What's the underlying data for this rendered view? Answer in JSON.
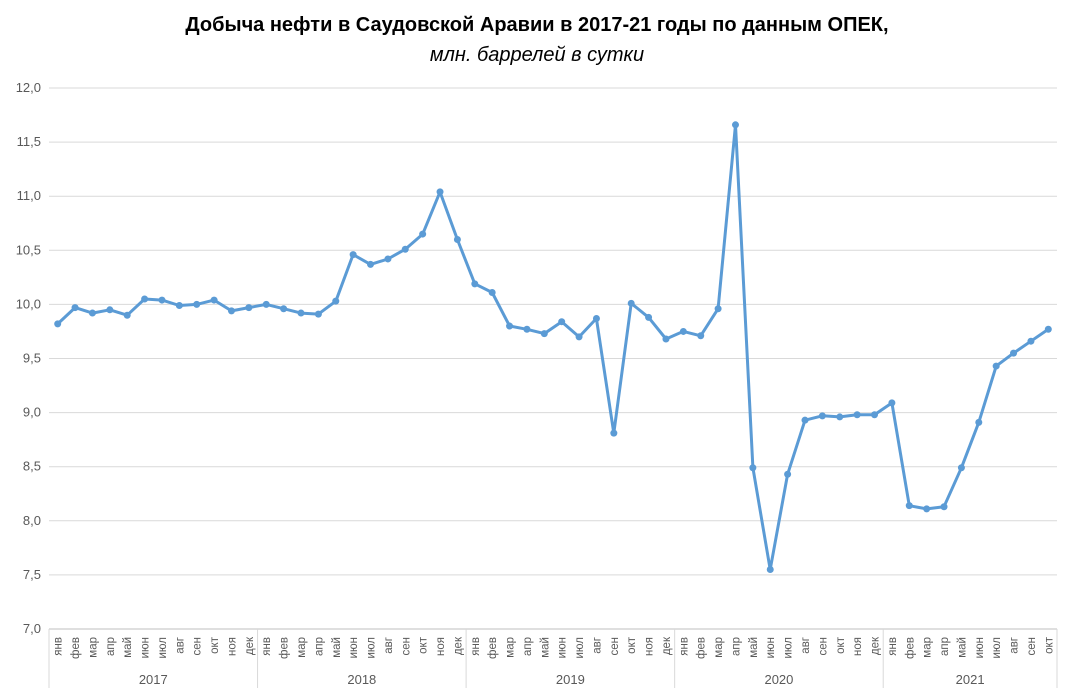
{
  "chart_data": {
    "type": "line",
    "title": "Добыча нефти в Саудовской Аравии в 2017-21 годы по данным ОПЕК,",
    "subtitle": "млн. баррелей в сутки",
    "xlabel": "",
    "ylabel": "",
    "ylim": [
      7.0,
      12.0
    ],
    "y_ticks": [
      "7,0",
      "7,5",
      "8,0",
      "8,5",
      "9,0",
      "9,5",
      "10,0",
      "10,5",
      "11,0",
      "11,5",
      "12,0"
    ],
    "grid": true,
    "legend": "none",
    "color": "#5B9BD5",
    "month_labels": [
      "янв",
      "фев",
      "мар",
      "апр",
      "май",
      "июн",
      "июл",
      "авг",
      "сен",
      "окт",
      "ноя",
      "дек"
    ],
    "years": [
      {
        "label": "2017",
        "months": 12
      },
      {
        "label": "2018",
        "months": 12
      },
      {
        "label": "2019",
        "months": 12
      },
      {
        "label": "2020",
        "months": 12
      },
      {
        "label": "2021",
        "months": 10
      }
    ],
    "series": [
      {
        "name": "Добыча нефти",
        "values": [
          9.82,
          9.97,
          9.92,
          9.95,
          9.9,
          10.05,
          10.04,
          9.99,
          10.0,
          10.04,
          9.94,
          9.97,
          10.0,
          9.96,
          9.92,
          9.91,
          10.03,
          10.46,
          10.37,
          10.42,
          10.51,
          10.65,
          11.04,
          10.6,
          10.19,
          10.11,
          9.8,
          9.77,
          9.73,
          9.84,
          9.7,
          9.87,
          8.81,
          10.01,
          9.88,
          9.68,
          9.75,
          9.71,
          9.96,
          11.66,
          8.49,
          7.55,
          8.43,
          8.93,
          8.97,
          8.96,
          8.98,
          8.98,
          9.09,
          8.14,
          8.11,
          8.13,
          8.49,
          8.91,
          9.43,
          9.55,
          9.66,
          9.77
        ]
      }
    ]
  }
}
